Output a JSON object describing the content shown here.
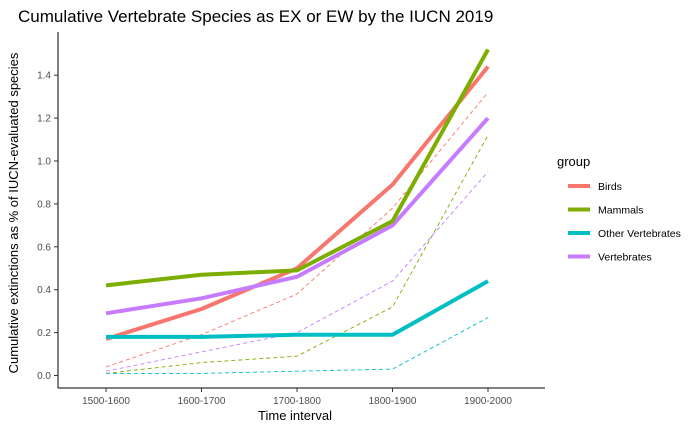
{
  "chart_data": {
    "type": "line",
    "title": "Cumulative Vertebrate Species as EX or EW by the IUCN 2019",
    "xlabel": "Time interval",
    "ylabel": "Cumulative extinctions as % of IUCN-evaluated species",
    "categories": [
      "1500-1600",
      "1600-1700",
      "1700-1800",
      "1800-1900",
      "1900-2000"
    ],
    "ylim": [
      -0.05,
      1.55
    ],
    "yticks": [
      0.0,
      0.2,
      0.4,
      0.6,
      0.8,
      1.0,
      1.2,
      1.4
    ],
    "ytick_labels": [
      "0.0",
      "0.2",
      "0.4",
      "0.6",
      "0.8",
      "1.0",
      "1.2",
      "1.4"
    ],
    "grid": false,
    "legend": {
      "title": "group",
      "placement": "right"
    },
    "series": [
      {
        "name": "Birds",
        "color": "#F8766D",
        "values": [
          0.17,
          0.31,
          0.5,
          0.89,
          1.44
        ],
        "lower": [
          0.04,
          0.19,
          0.38,
          0.78,
          1.32
        ]
      },
      {
        "name": "Mammals",
        "color": "#7CAE00",
        "values": [
          0.42,
          0.47,
          0.49,
          0.72,
          1.52
        ],
        "lower": [
          0.01,
          0.06,
          0.09,
          0.32,
          1.12
        ]
      },
      {
        "name": "Other Vertebrates",
        "color": "#00BFC4",
        "values": [
          0.18,
          0.18,
          0.19,
          0.19,
          0.44
        ],
        "lower": [
          0.01,
          0.01,
          0.02,
          0.03,
          0.27
        ]
      },
      {
        "name": "Vertebrates",
        "color": "#C77CFF",
        "values": [
          0.29,
          0.36,
          0.46,
          0.7,
          1.2
        ],
        "lower": [
          0.02,
          0.11,
          0.2,
          0.44,
          0.95
        ]
      }
    ]
  }
}
